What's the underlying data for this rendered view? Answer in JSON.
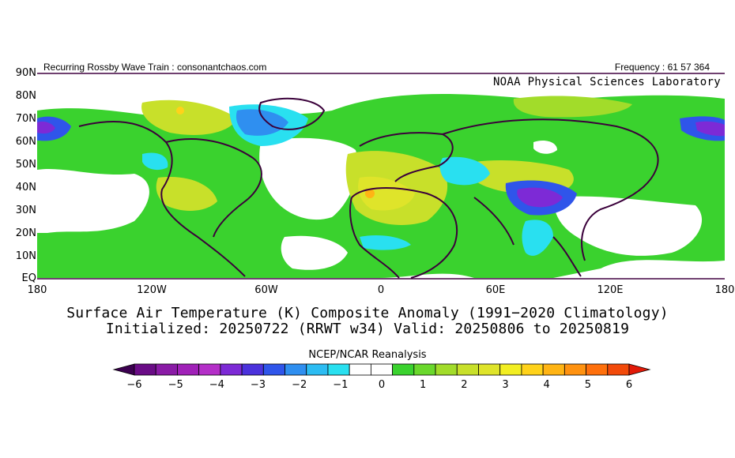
{
  "header": {
    "left": "Recurring Rossby Wave Train : consonantchaos.com",
    "right": "Frequency : 61 57 364"
  },
  "map": {
    "source_label": "NOAA Physical Sciences Laboratory",
    "lat_labels": [
      "90N",
      "80N",
      "70N",
      "60N",
      "50N",
      "40N",
      "30N",
      "20N",
      "10N",
      "EQ"
    ],
    "lon_labels": [
      "180",
      "120W",
      "60W",
      "0",
      "60E",
      "120E",
      "180"
    ]
  },
  "titles": {
    "line1": "Surface Air Temperature (K) Composite Anomaly (1991−2020 Climatology)",
    "line2": "Initialized: 20250722 (RRWT w34) Valid: 20250806 to 20250819"
  },
  "colorbar": {
    "title": "NCEP/NCAR Reanalysis",
    "labels": [
      "−6",
      "−5",
      "−4",
      "−3",
      "−2",
      "−1",
      "0",
      "1",
      "2",
      "3",
      "4",
      "5",
      "6"
    ],
    "colors": [
      "#3c0050",
      "#6a0c86",
      "#8a1ba6",
      "#a021b8",
      "#b42fc8",
      "#7d2ad6",
      "#4b32dc",
      "#2f55ea",
      "#2f8ff0",
      "#2cbcf2",
      "#29e0f0",
      "#ffffff",
      "#ffffff",
      "#3ad22e",
      "#6ad82c",
      "#a2dc2a",
      "#c8e02a",
      "#dfe42a",
      "#f2ee22",
      "#ffd21a",
      "#ffb414",
      "#ff9210",
      "#ff700c",
      "#f24a0a",
      "#e21a08"
    ]
  }
}
